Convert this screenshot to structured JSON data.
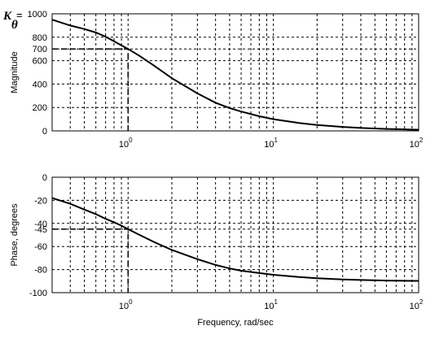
{
  "chart_data": [
    {
      "type": "line",
      "ylabel": "Magnitude",
      "xscale": "log",
      "xlim": [
        0.3,
        100
      ],
      "ylim": [
        0,
        1000
      ],
      "grid": true,
      "xticks": [
        {
          "value": 1,
          "base": "10",
          "exp": "0"
        },
        {
          "value": 10,
          "base": "10",
          "exp": "1"
        },
        {
          "value": 100,
          "base": "10",
          "exp": "2"
        }
      ],
      "yticks": [
        {
          "value": 0,
          "label": "0"
        },
        {
          "value": 200,
          "label": "200"
        },
        {
          "value": 400,
          "label": "400"
        },
        {
          "value": 600,
          "label": "600"
        },
        {
          "value": 700,
          "label": "700"
        },
        {
          "value": 800,
          "label": "800"
        },
        {
          "value": 1000,
          "label": "1000"
        }
      ],
      "corner_label": {
        "symbol": "K",
        "subscript": "θ",
        "equals": "="
      },
      "reference_point": {
        "x": 1,
        "y": 700
      },
      "series": [
        {
          "x": [
            0.3,
            0.4,
            0.5,
            0.6,
            0.7,
            0.8,
            0.9,
            1,
            1.2,
            1.5,
            2,
            3,
            4,
            5,
            6,
            8,
            10,
            15,
            20,
            30,
            40,
            60,
            80,
            100
          ],
          "y": [
            950,
            900,
            870,
            840,
            805,
            765,
            730,
            700,
            640,
            560,
            450,
            320,
            240,
            195,
            165,
            125,
            100,
            68,
            50,
            34,
            25,
            17,
            13,
            10
          ]
        }
      ]
    },
    {
      "type": "line",
      "xlabel": "Frequency, rad/sec",
      "ylabel": "Phase, degrees",
      "xscale": "log",
      "xlim": [
        0.3,
        100
      ],
      "ylim": [
        -100,
        0
      ],
      "grid": true,
      "xticks": [
        {
          "value": 1,
          "base": "10",
          "exp": "0"
        },
        {
          "value": 10,
          "base": "10",
          "exp": "1"
        },
        {
          "value": 100,
          "base": "10",
          "exp": "2"
        }
      ],
      "yticks": [
        {
          "value": 0,
          "label": "0"
        },
        {
          "value": -20,
          "label": "-20"
        },
        {
          "value": -40,
          "label": "-40"
        },
        {
          "value": -45,
          "label": "-45"
        },
        {
          "value": -60,
          "label": "-60"
        },
        {
          "value": -80,
          "label": "-80"
        },
        {
          "value": -100,
          "label": "-100"
        }
      ],
      "reference_point": {
        "x": 1,
        "y": -45
      },
      "series": [
        {
          "x": [
            0.3,
            0.4,
            0.5,
            0.6,
            0.7,
            0.8,
            0.9,
            1,
            1.2,
            1.5,
            2,
            3,
            4,
            5,
            6,
            8,
            10,
            15,
            20,
            30,
            40,
            60,
            80,
            100
          ],
          "y": [
            -18,
            -23,
            -28,
            -32,
            -36,
            -39,
            -42,
            -45,
            -50,
            -56,
            -63,
            -71,
            -76,
            -79,
            -81,
            -83,
            -84.5,
            -86.5,
            -87.5,
            -88.5,
            -89,
            -89.5,
            -89.7,
            -89.8
          ]
        }
      ]
    }
  ]
}
